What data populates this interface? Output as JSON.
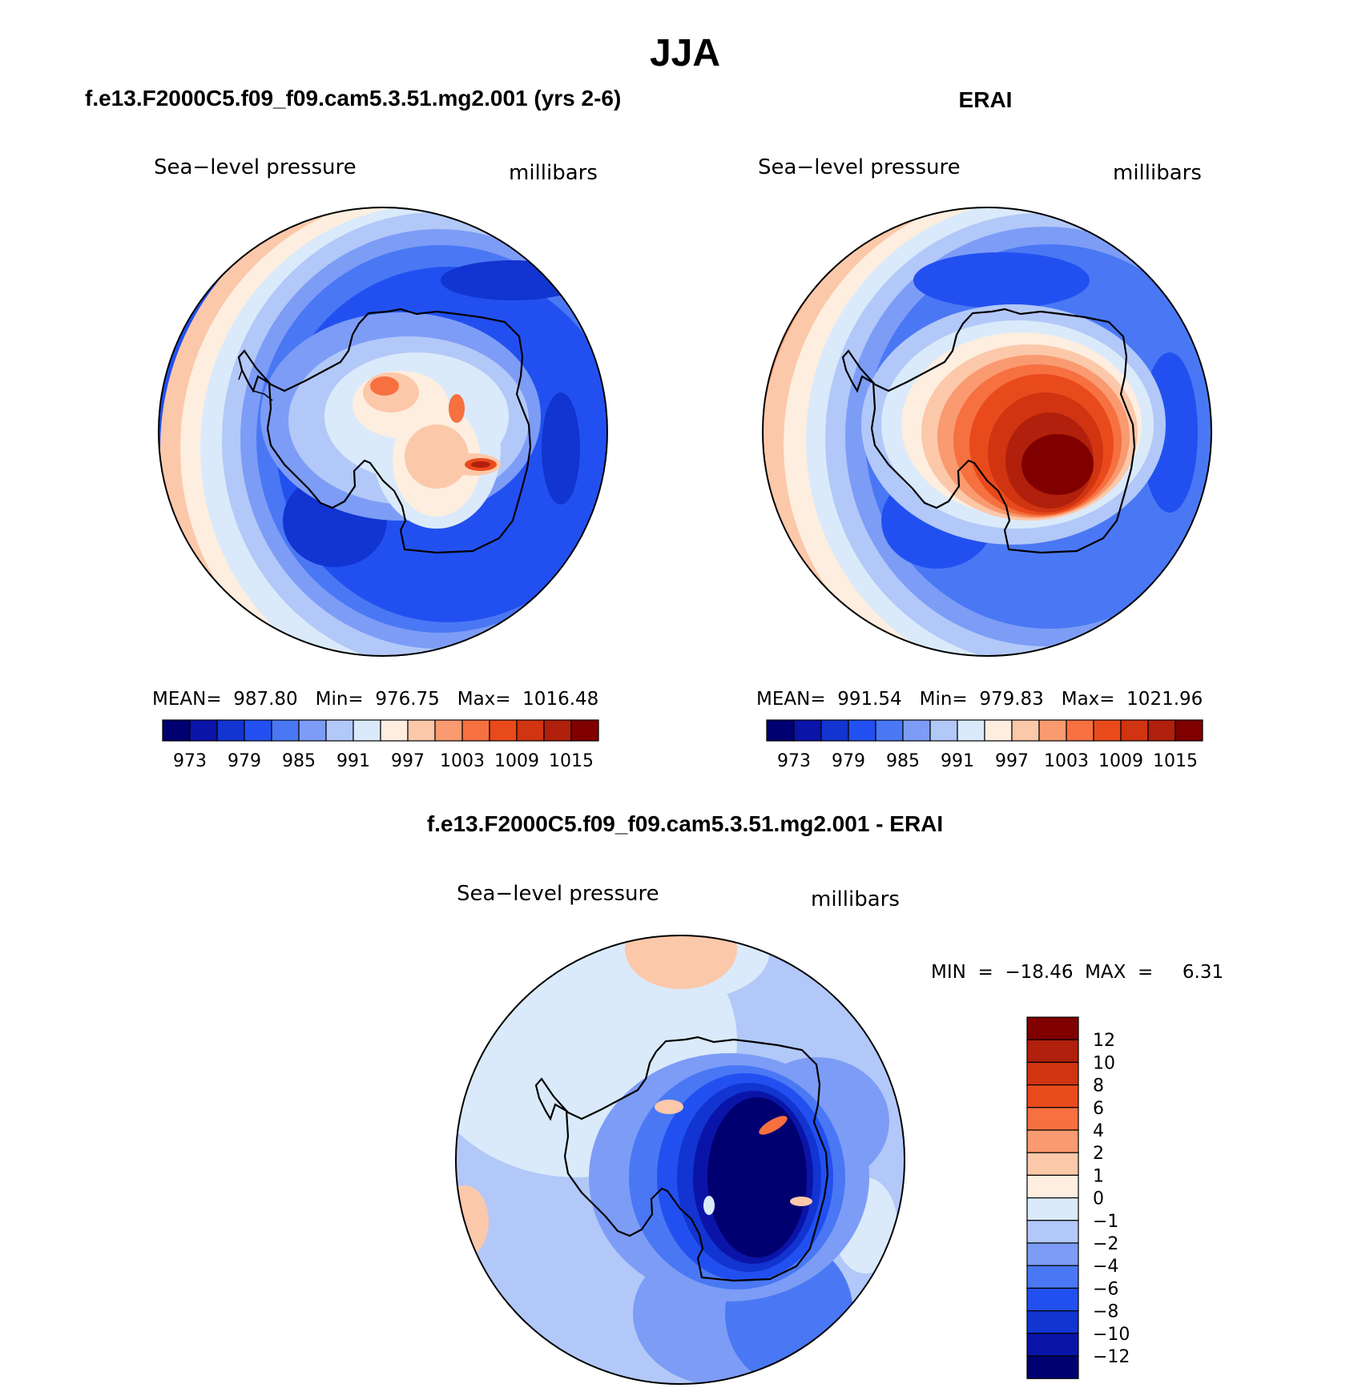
{
  "figure": {
    "title": "JJA",
    "difference_title": "f.e13.F2000C5.f09_f09.cam5.3.51.mg2.001 - ERAI"
  },
  "colors": {
    "abs_scale": [
      "#000070",
      "#0a14a8",
      "#1234d0",
      "#2250f0",
      "#4a78f4",
      "#7d9cf6",
      "#b2c8f8",
      "#daeafa",
      "#fdeee0",
      "#fcc8aa",
      "#f99a70",
      "#f67040",
      "#e94a1c",
      "#d03410",
      "#b0200c",
      "#800000"
    ],
    "diff_scale": [
      "#000070",
      "#0a14a8",
      "#1234d0",
      "#2250f0",
      "#4a78f4",
      "#7d9cf6",
      "#b2c8f8",
      "#daeafa",
      "#fdeee0",
      "#fcc8aa",
      "#f99a70",
      "#f67040",
      "#e94a1c",
      "#d03410",
      "#b0200c",
      "#800000"
    ]
  },
  "panels": [
    {
      "title": "f.e13.F2000C5.f09_f09.cam5.3.51.mg2.001 (yrs 2-6)",
      "variable": "Sea−level pressure",
      "units": "millibars",
      "stats": "MEAN=  987.80   Min=  976.75   Max=  1016.48",
      "colorbar_labels": [
        "973",
        "979",
        "985",
        "991",
        "997",
        "1003",
        "1009",
        "1015"
      ]
    },
    {
      "title": "ERAI",
      "variable": "Sea−level pressure",
      "units": "millibars",
      "stats": "MEAN=  991.54   Min=  979.83   Max=  1021.96",
      "colorbar_labels": [
        "973",
        "979",
        "985",
        "991",
        "997",
        "1003",
        "1009",
        "1015"
      ]
    },
    {
      "variable": "Sea−level pressure",
      "units": "millibars",
      "stats": "MIN  =  −18.46  MAX  =     6.31",
      "colorbar_labels": [
        "12",
        "10",
        "8",
        "6",
        "4",
        "2",
        "1",
        "0",
        "−1",
        "−2",
        "−4",
        "−6",
        "−8",
        "−10",
        "−12"
      ]
    }
  ]
}
